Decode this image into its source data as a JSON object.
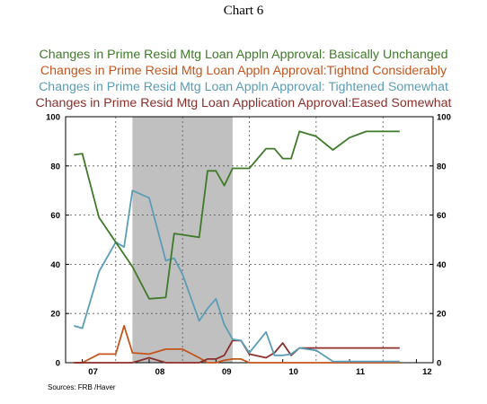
{
  "header": {
    "title": "Chart 6"
  },
  "source": "Sources: FRB /Haver",
  "colors": {
    "unchanged": "#3f7a28",
    "tightened_considerably": "#c4561d",
    "tightened_somewhat": "#5b9db6",
    "eased_somewhat": "#8b2f2a",
    "recession": "#c0c0c0"
  },
  "chart_data": {
    "type": "line",
    "title": "Chart 6",
    "xlabel": "",
    "ylabel": "",
    "ylim": [
      0,
      100
    ],
    "y_ticks": [
      0,
      20,
      40,
      60,
      80,
      100
    ],
    "x_ticks": [
      "07",
      "08",
      "09",
      "10",
      "11",
      "12"
    ],
    "x_tick_dates": [
      2007.0,
      2008.0,
      2009.0,
      2010.0,
      2011.0,
      2012.0
    ],
    "xlim": [
      2006.75,
      2012.25
    ],
    "grid": true,
    "legend_position": "top",
    "recession_shading": [
      2007.75,
      2009.25
    ],
    "x": [
      2006.875,
      2007.0,
      2007.25,
      2007.5,
      2007.625,
      2007.75,
      2008.0,
      2008.25,
      2008.375,
      2008.5,
      2008.75,
      2008.875,
      2009.0,
      2009.125,
      2009.25,
      2009.375,
      2009.5,
      2009.75,
      2009.875,
      2010.0,
      2010.125,
      2010.25,
      2010.5,
      2010.75,
      2011.0,
      2011.25,
      2011.5,
      2011.75
    ],
    "series": [
      {
        "name": "Changes in Prime Resid Mtg Loan Appln Approval: Basically Unchanged",
        "color": "#3f7a28",
        "values": [
          84.5,
          85.0,
          59.0,
          49.0,
          44.0,
          39.0,
          26.0,
          26.5,
          52.5,
          52.0,
          51.0,
          78.0,
          78.0,
          72.0,
          79.0,
          79.0,
          79.0,
          87.0,
          87.0,
          83.0,
          83.0,
          94.0,
          92.0,
          86.5,
          91.5,
          94.0,
          94.0,
          94.0
        ]
      },
      {
        "name": "Changes in Prime Resid Mtg Loan Appln Approval:Tightnd Considerably",
        "color": "#c4561d",
        "values": [
          0.0,
          0.0,
          3.5,
          3.5,
          15.0,
          4.0,
          3.5,
          5.5,
          5.5,
          5.5,
          2.0,
          0.0,
          0.0,
          1.0,
          1.5,
          1.5,
          0.0,
          0.0,
          0.0,
          0.0,
          0.0,
          0.0,
          0.0,
          0.0,
          0.0,
          0.0,
          0.0,
          0.0
        ]
      },
      {
        "name": "Changes in Prime Resid Mtg Loan Appln Approval: Tightened Somewhat",
        "color": "#5b9db6",
        "values": [
          15.0,
          14.0,
          37.0,
          49.0,
          47.0,
          70.0,
          67.0,
          41.5,
          42.5,
          36.0,
          17.0,
          22.0,
          26.0,
          15.5,
          9.5,
          9.0,
          4.0,
          12.5,
          3.0,
          3.0,
          3.5,
          6.0,
          5.0,
          0.5,
          0.5,
          0.5,
          0.5,
          0.5
        ]
      },
      {
        "name": "Changes in Prime Resid Mtg Loan Application Approval:Eased Somewhat",
        "color": "#8b2f2a",
        "values": [
          0.0,
          0.0,
          0.0,
          0.0,
          0.0,
          0.0,
          2.0,
          0.0,
          0.0,
          0.0,
          0.0,
          1.5,
          1.5,
          3.0,
          9.0,
          9.0,
          3.5,
          2.0,
          4.0,
          8.0,
          3.0,
          6.0,
          6.0,
          6.0,
          6.0,
          6.0,
          6.0,
          6.0
        ]
      }
    ]
  }
}
